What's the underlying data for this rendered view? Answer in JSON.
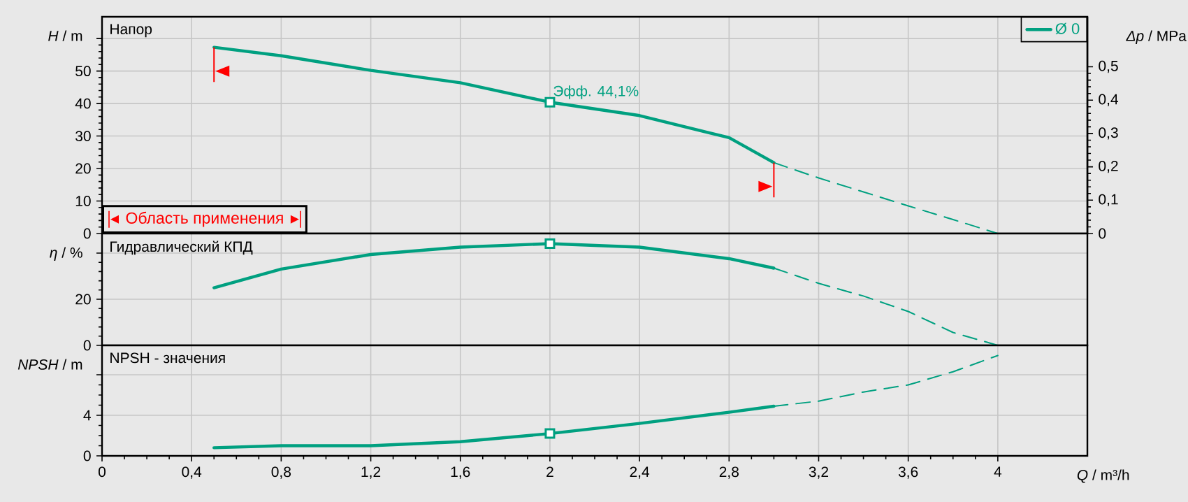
{
  "chart_data": [
    {
      "type": "line",
      "ylabel": "*H* / m",
      "y2label": "*Δp* / MPa",
      "xlim": [
        0,
        4.4
      ],
      "xticks": [
        {
          "value": 0,
          "label": null
        },
        {
          "value": 0.4,
          "label": null
        },
        {
          "value": 0.8,
          "label": null
        },
        {
          "value": 1.2,
          "label": null
        },
        {
          "value": 1.6,
          "label": null
        },
        {
          "value": 2,
          "label": null
        },
        {
          "value": 2.4,
          "label": null
        },
        {
          "value": 2.8,
          "label": null
        },
        {
          "value": 3.2,
          "label": null
        },
        {
          "value": 3.6,
          "label": null
        },
        {
          "value": 4,
          "label": null
        }
      ],
      "ylim": [
        0,
        66.7
      ],
      "yticks": [
        0,
        10,
        20,
        30,
        40,
        50,
        {
          "value": 60,
          "label": null
        }
      ],
      "y2lim": [
        0,
        0.65
      ],
      "y2ticks": [
        0,
        {
          "value": 0.1,
          "label": "0,1"
        },
        {
          "value": 0.2,
          "label": "0,2"
        },
        {
          "value": 0.3,
          "label": "0,3"
        },
        {
          "value": 0.4,
          "label": "0,4"
        },
        {
          "value": 0.5,
          "label": "0,5"
        }
      ],
      "tick_labels": "y",
      "grid": true,
      "legend": "top right",
      "series": [
        {
          "name": "Ø 0",
          "color": "#00a080",
          "x": [
            0.5,
            0.8,
            1.2,
            1.6,
            2.0,
            2.4,
            2.8,
            3.0
          ],
          "values": [
            57.3,
            54.7,
            50.2,
            46.4,
            40.4,
            36.3,
            29.5,
            21.8
          ]
        },
        {
          "color": "#00a080",
          "line_style": "dashed",
          "x": [
            3.0,
            3.2,
            3.4,
            3.6,
            3.8,
            4.0
          ],
          "values": [
            21.8,
            17.1,
            12.8,
            8.5,
            4.3,
            0
          ]
        },
        {
          "type": "scatter",
          "marker": "square",
          "color": "#00a080",
          "x": [
            2
          ],
          "values": [
            40.4
          ]
        }
      ],
      "ref_lines": [
        {
          "axis": "x",
          "value": 0.5,
          "color": "#ff0000"
        },
        {
          "axis": "x",
          "value": 3.0,
          "color": "#ff0000"
        }
      ],
      "annotations": [
        "Напор",
        {
          "text": "Эфф.  44,1%",
          "x": 2,
          "y": 40.4
        },
        "Область применения"
      ]
    },
    {
      "type": "line",
      "ylabel": "*η* / %",
      "xlim": [
        0,
        4.4
      ],
      "xticks": [
        {
          "value": 0,
          "label": null
        },
        {
          "value": 0.4,
          "label": null
        },
        {
          "value": 0.8,
          "label": null
        },
        {
          "value": 1.2,
          "label": null
        },
        {
          "value": 1.6,
          "label": null
        },
        {
          "value": 2,
          "label": null
        },
        {
          "value": 2.4,
          "label": null
        },
        {
          "value": 2.8,
          "label": null
        },
        {
          "value": 3.2,
          "label": null
        },
        {
          "value": 3.6,
          "label": null
        },
        {
          "value": 4,
          "label": null
        }
      ],
      "ylim": [
        0,
        48.5
      ],
      "yticks": [
        0,
        20,
        {
          "value": 40,
          "label": null
        }
      ],
      "tick_labels": "y",
      "grid": true,
      "series": [
        {
          "color": "#00a080",
          "x": [
            0.5,
            0.8,
            1.2,
            1.6,
            2.0,
            2.4,
            2.8,
            3.0
          ],
          "values": [
            25.0,
            33.1,
            39.4,
            42.6,
            44.1,
            42.6,
            37.6,
            33.5
          ]
        },
        {
          "color": "#00a080",
          "line_style": "dashed",
          "x": [
            3.0,
            3.2,
            3.4,
            3.6,
            3.8,
            4.0
          ],
          "values": [
            33.5,
            26.9,
            21.4,
            14.7,
            5.6,
            0
          ]
        },
        {
          "type": "scatter",
          "marker": "square",
          "color": "#00a080",
          "x": [
            2
          ],
          "values": [
            44.1
          ]
        }
      ],
      "annotations": [
        "Гидравлический КПД"
      ]
    },
    {
      "type": "line",
      "ylabel": "*NPSH* / m",
      "xlabel": "*Q* / m³/h",
      "xlim": [
        0,
        4.4
      ],
      "xticks": [
        0,
        {
          "value": 0.4,
          "label": "0,4"
        },
        {
          "value": 0.8,
          "label": "0,8"
        },
        {
          "value": 1.2,
          "label": "1,2"
        },
        {
          "value": 1.6,
          "label": "1,6"
        },
        2,
        {
          "value": 2.4,
          "label": "2,4"
        },
        {
          "value": 2.8,
          "label": "2,8"
        },
        {
          "value": 3.2,
          "label": "3,2"
        },
        {
          "value": 3.6,
          "label": "3,6"
        },
        4
      ],
      "ylim": [
        0,
        10.9
      ],
      "yticks": [
        0,
        4,
        {
          "value": 8,
          "label": null
        }
      ],
      "grid": true,
      "series": [
        {
          "color": "#00a080",
          "x": [
            0.5,
            0.8,
            1.2,
            1.6,
            2.0,
            2.4,
            2.8,
            3.0
          ],
          "values": [
            0.8,
            1.0,
            1.0,
            1.4,
            2.2,
            3.2,
            4.3,
            4.9
          ]
        },
        {
          "color": "#00a080",
          "line_style": "dashed",
          "x": [
            3.0,
            3.2,
            3.4,
            3.6,
            3.8,
            4.0
          ],
          "values": [
            4.9,
            5.4,
            6.3,
            7.0,
            8.3,
            9.9
          ]
        },
        {
          "type": "scatter",
          "marker": "square",
          "color": "#00a080",
          "x": [
            2
          ],
          "values": [
            2.2
          ]
        }
      ],
      "annotations": [
        "NPSH - значения"
      ]
    }
  ]
}
